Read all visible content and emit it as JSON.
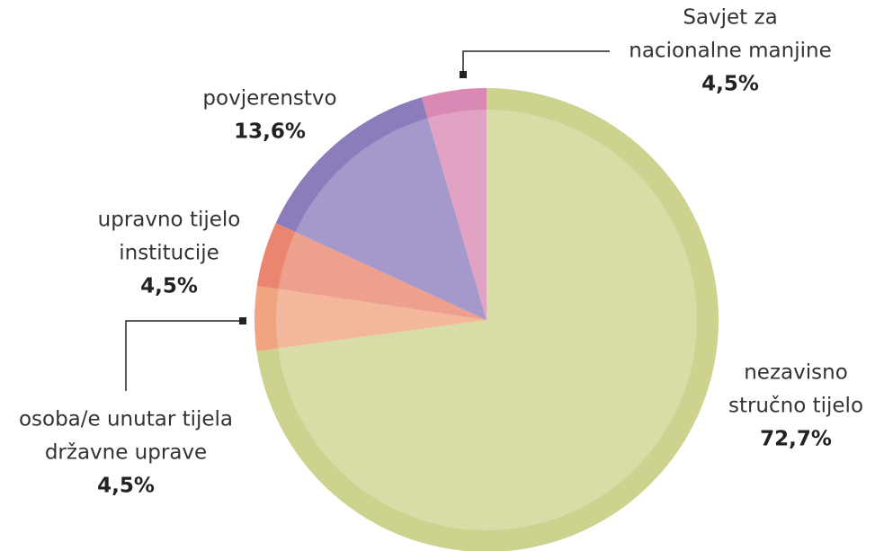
{
  "chart_data": {
    "type": "pie",
    "categories": [
      [
        "nezavisno",
        "stručno tijelo"
      ],
      [
        "osoba/e unutar tijela",
        "državne uprave"
      ],
      [
        "upravno tijelo",
        "institucije"
      ],
      [
        "povjerenstvo"
      ],
      [
        "Savjet za",
        "nacionalne manjine"
      ]
    ],
    "values": [
      72.7,
      4.5,
      4.5,
      13.6,
      4.5
    ],
    "value_labels": [
      "72,7%",
      "4,5%",
      "4,5%",
      "13,6%",
      "4,5%"
    ],
    "colors": [
      "#cdd28e",
      "#f0a480",
      "#ea8670",
      "#8c7cbc",
      "#da88b4"
    ]
  }
}
